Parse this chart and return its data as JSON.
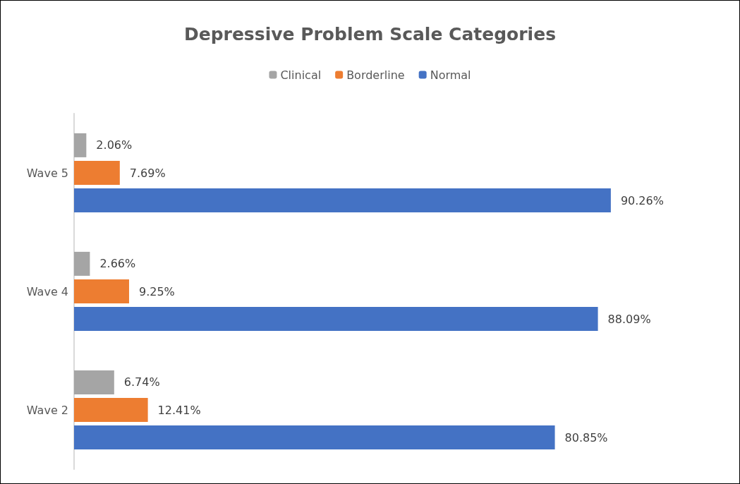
{
  "chart_data": {
    "type": "bar",
    "orientation": "horizontal",
    "title": "Depressive Problem Scale Categories",
    "categories": [
      "Wave 5",
      "Wave 4",
      "Wave 2"
    ],
    "legend": "top",
    "grid": false,
    "series": [
      {
        "name": "Clinical",
        "color": "#a5a5a5",
        "values": [
          2.06,
          2.66,
          6.74
        ],
        "value_labels": [
          "2.06%",
          "2.66%",
          "6.74%"
        ]
      },
      {
        "name": "Borderline",
        "color": "#ed7d31",
        "values": [
          7.69,
          9.25,
          12.41
        ],
        "value_labels": [
          "7.69%",
          "9.25%",
          "12.41%"
        ]
      },
      {
        "name": "Normal",
        "color": "#4472c4",
        "values": [
          90.26,
          88.09,
          80.85
        ],
        "value_labels": [
          "90.26%",
          "88.09%",
          "80.85%"
        ]
      }
    ]
  }
}
